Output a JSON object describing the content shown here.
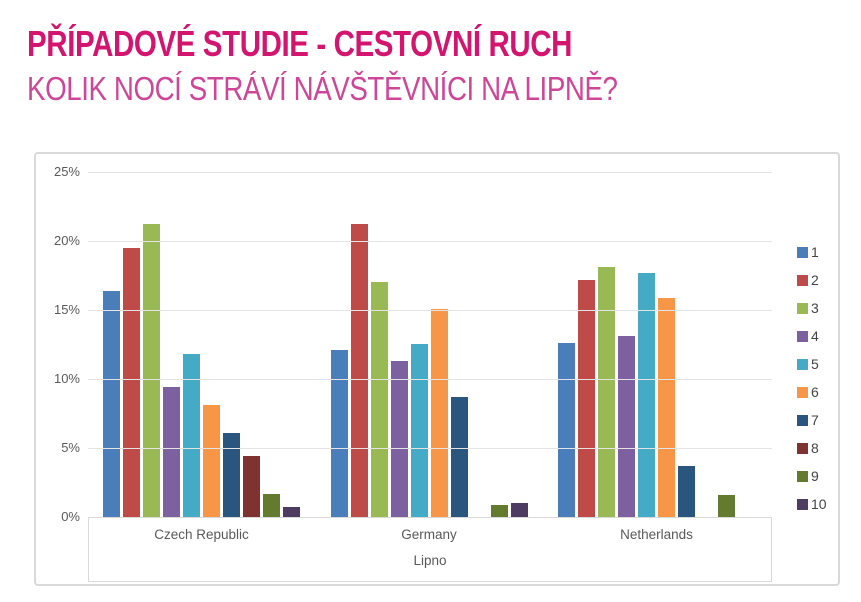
{
  "header": {
    "title": "PŘÍPADOVÉ STUDIE - CESTOVNÍ RUCH",
    "subtitle": "KOLIK NOCÍ STRÁVÍ NÁVŠTĚVNÍCI NA LIPNĚ?",
    "title_color": "#D3156F",
    "subtitle_color": "#CE4697"
  },
  "chart_data": {
    "type": "bar",
    "title": "",
    "categories": [
      "Czech Republic",
      "Germany",
      "Netherlands"
    ],
    "axis_group_label": "Lipno",
    "ylim": [
      0,
      25
    ],
    "ytick_step": 5,
    "ytick_suffix": "%",
    "yticks": [
      "25%",
      "20%",
      "15%",
      "10%",
      "5%",
      "0%"
    ],
    "grid": true,
    "legend_position": "right",
    "series": [
      {
        "name": "1",
        "color": "#4A7EBB",
        "values": [
          16.4,
          12.1,
          12.6
        ]
      },
      {
        "name": "2",
        "color": "#BE4B48",
        "values": [
          19.5,
          21.2,
          17.2
        ]
      },
      {
        "name": "3",
        "color": "#98B954",
        "values": [
          21.2,
          17.0,
          18.1
        ]
      },
      {
        "name": "4",
        "color": "#7D60A0",
        "values": [
          9.4,
          11.3,
          13.1
        ]
      },
      {
        "name": "5",
        "color": "#45AAC5",
        "values": [
          11.8,
          12.5,
          17.7
        ]
      },
      {
        "name": "6",
        "color": "#F79646",
        "values": [
          8.1,
          15.1,
          15.9
        ]
      },
      {
        "name": "7",
        "color": "#29557F",
        "values": [
          6.1,
          8.7,
          3.7
        ]
      },
      {
        "name": "8",
        "color": "#7E3330",
        "values": [
          4.4,
          0,
          0
        ]
      },
      {
        "name": "9",
        "color": "#647A2E",
        "values": [
          1.7,
          0.9,
          1.6
        ]
      },
      {
        "name": "10",
        "color": "#4E3B62",
        "values": [
          0.7,
          1.0,
          0
        ]
      }
    ]
  }
}
